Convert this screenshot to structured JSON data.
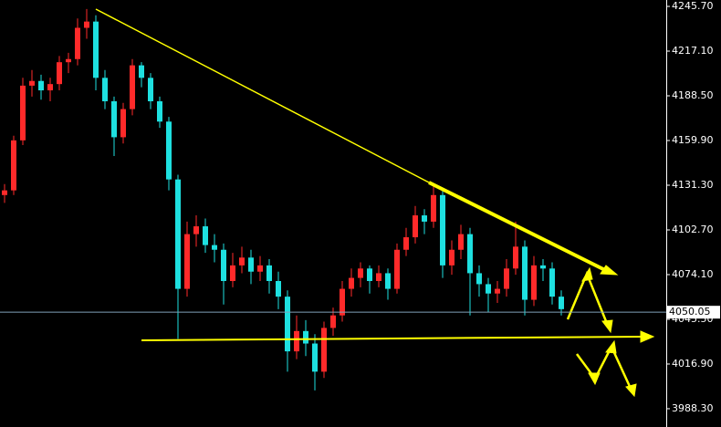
{
  "chart_data": {
    "type": "candlestick",
    "open": [
      4125,
      4128,
      4160,
      4195,
      4198,
      4192,
      4196,
      4210,
      4212,
      4232,
      4236,
      4200,
      4185,
      4162,
      4180,
      4208,
      4200,
      4185,
      4172,
      4135,
      4065,
      4100,
      4105,
      4093,
      4090,
      4070,
      4080,
      4085,
      4076,
      4080,
      4070,
      4060,
      4025,
      4038,
      4030,
      4012,
      4040,
      4048,
      4065,
      4072,
      4078,
      4070,
      4075,
      4065,
      4090,
      4098,
      4112,
      4108,
      4125,
      4080,
      4090,
      4100,
      4075,
      4068,
      4062,
      4065,
      4078,
      4092,
      4058,
      4080,
      4078,
      4060
    ],
    "high": [
      4132,
      4163,
      4200,
      4205,
      4202,
      4200,
      4214,
      4216,
      4238,
      4244,
      4240,
      4205,
      4188,
      4184,
      4212,
      4210,
      4203,
      4188,
      4175,
      4138,
      4108,
      4112,
      4110,
      4100,
      4094,
      4088,
      4092,
      4090,
      4086,
      4084,
      4076,
      4064,
      4048,
      4045,
      4036,
      4044,
      4053,
      4070,
      4078,
      4082,
      4080,
      4080,
      4078,
      4094,
      4104,
      4118,
      4116,
      4132,
      4128,
      4096,
      4106,
      4104,
      4080,
      4072,
      4070,
      4084,
      4108,
      4096,
      4086,
      4084,
      4082,
      4064
    ],
    "low": [
      4120,
      4125,
      4157,
      4188,
      4186,
      4185,
      4192,
      4203,
      4208,
      4225,
      4192,
      4180,
      4150,
      4158,
      4176,
      4194,
      4180,
      4168,
      4128,
      4033,
      4060,
      4092,
      4088,
      4082,
      4055,
      4066,
      4075,
      4068,
      4070,
      4062,
      4052,
      4012,
      4020,
      4022,
      4000,
      4008,
      4035,
      4044,
      4060,
      4066,
      4062,
      4066,
      4058,
      4062,
      4086,
      4094,
      4100,
      4104,
      4072,
      4074,
      4084,
      4048,
      4060,
      4050,
      4056,
      4060,
      4074,
      4048,
      4054,
      4070,
      4055,
      4048
    ],
    "close": [
      4128,
      4160,
      4195,
      4198,
      4192,
      4196,
      4210,
      4212,
      4232,
      4236,
      4200,
      4185,
      4162,
      4180,
      4208,
      4200,
      4185,
      4172,
      4135,
      4065,
      4100,
      4105,
      4093,
      4090,
      4070,
      4080,
      4085,
      4076,
      4080,
      4070,
      4060,
      4025,
      4038,
      4030,
      4012,
      4040,
      4048,
      4065,
      4072,
      4078,
      4070,
      4075,
      4065,
      4090,
      4098,
      4112,
      4108,
      4125,
      4080,
      4090,
      4100,
      4075,
      4068,
      4062,
      4065,
      4078,
      4092,
      4058,
      4080,
      4078,
      4060,
      4052
    ],
    "up_color": "#ff2a2a",
    "down_color": "#1ee0e0",
    "current_price": 4050.05,
    "ylim": [
      3976.6,
      4249.8
    ],
    "yticks": [
      {
        "value": 4245.7,
        "label": "4245.70"
      },
      {
        "value": 4217.1,
        "label": "4217.10"
      },
      {
        "value": 4188.5,
        "label": "4188.50"
      },
      {
        "value": 4159.9,
        "label": "4159.90"
      },
      {
        "value": 4131.3,
        "label": "4131.30"
      },
      {
        "value": 4102.7,
        "label": "4102.70"
      },
      {
        "value": 4074.1,
        "label": "4074.10"
      },
      {
        "value": 4045.5,
        "label": "4045.50"
      },
      {
        "value": 4016.9,
        "label": "4016.90"
      },
      {
        "value": 3988.3,
        "label": "3988.30"
      }
    ]
  }
}
